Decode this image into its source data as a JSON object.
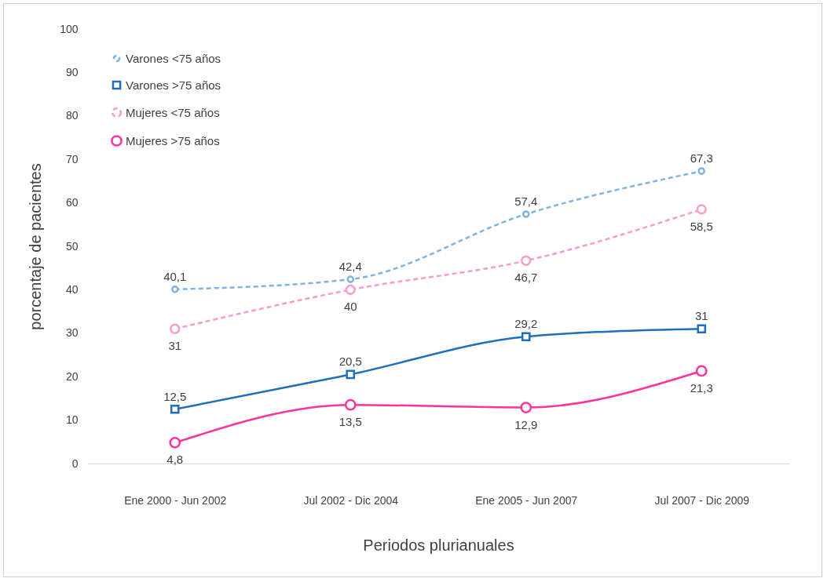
{
  "chart_data": {
    "type": "line",
    "xlabel": "Periodos plurianuales",
    "ylabel": "porcentaje de pacientes",
    "categories": [
      "Ene 2000 - Jun 2002",
      "Jul 2002 - Dic 2004",
      "Ene 2005 - Jun 2007",
      "Jul 2007 - Dic 2009"
    ],
    "series": [
      {
        "name": "Varones <75 años",
        "color": "#7fb3e0",
        "line_style": "dashed",
        "marker": "circle",
        "values": [
          40.1,
          42.4,
          57.4,
          67.3
        ],
        "value_labels": [
          "40,1",
          "42,4",
          "57,4",
          "67,3"
        ]
      },
      {
        "name": "Varones >75 años",
        "color": "#1f6fbf",
        "line_style": "solid",
        "marker": "square",
        "values": [
          12.5,
          20.5,
          29.2,
          31
        ],
        "value_labels": [
          "12,5",
          "20,5",
          "29,2",
          "31"
        ]
      },
      {
        "name": "Mujeres <75 años",
        "color": "#f99ccb",
        "line_style": "dashed",
        "marker": "circle",
        "values": [
          31,
          40,
          46.7,
          58.5
        ],
        "value_labels": [
          "31",
          "40",
          "46,7",
          "58,5"
        ]
      },
      {
        "name": "Mujeres >75 años",
        "color": "#ff3399",
        "line_style": "solid",
        "marker": "circle",
        "values": [
          4.8,
          13.5,
          12.9,
          21.3
        ],
        "value_labels": [
          "4,8",
          "13,5",
          "12,9",
          "21,3"
        ]
      }
    ],
    "ylim": [
      0,
      100
    ],
    "yticks": [
      0,
      10,
      20,
      30,
      40,
      50,
      60,
      70,
      80,
      90,
      100
    ],
    "grid": false,
    "legend": "top left"
  }
}
